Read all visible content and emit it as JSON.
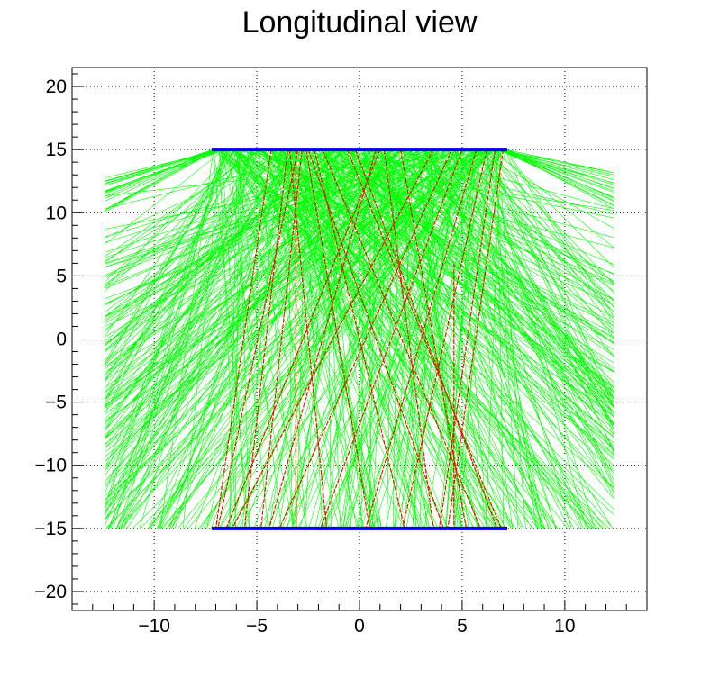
{
  "chart_data": {
    "type": "line",
    "title": "Longitudinal view",
    "xlabel": "",
    "ylabel": "",
    "xlim": [
      -14,
      14
    ],
    "ylim": [
      -21.5,
      21.5
    ],
    "x_ticks": [
      -10,
      -5,
      0,
      5,
      10
    ],
    "x_tick_labels": [
      "−10",
      "−5",
      "0",
      "5",
      "10"
    ],
    "y_ticks": [
      -20,
      -15,
      -10,
      -5,
      0,
      5,
      10,
      15,
      20
    ],
    "y_tick_labels": [
      "−20",
      "−15",
      "−10",
      "−5",
      "0",
      "5",
      "10",
      "15",
      "20"
    ],
    "grid": true,
    "legend": "none",
    "series": [
      {
        "role": "detector planes",
        "color": "#0000ff",
        "segments": [
          {
            "x": [
              -7.2,
              7.2
            ],
            "y": [
              15,
              15
            ]
          },
          {
            "x": [
              -7.2,
              7.2
            ],
            "y": [
              -15,
              -15
            ]
          }
        ]
      },
      {
        "role": "photon tracks",
        "color": "#00ff00",
        "source_x_range": [
          -7.2,
          7.2
        ],
        "source_y": 15,
        "end_y_bottom": -15,
        "side_x": [
          -12.4,
          12.4
        ],
        "side_y_range": [
          -15,
          13.3
        ]
      },
      {
        "role": "particle tracks",
        "color": "#ff0000",
        "segments": [
          {
            "x": [
              -3.0,
              -6.9
            ],
            "y": [
              15,
              -15
            ]
          },
          {
            "x": [
              -2.8,
              -4.8
            ],
            "y": [
              15,
              -15
            ]
          },
          {
            "x": [
              -3.5,
              -5.6
            ],
            "y": [
              15,
              -15
            ]
          },
          {
            "x": [
              -3.4,
              -1.6
            ],
            "y": [
              15,
              -15
            ]
          },
          {
            "x": [
              -2.6,
              0.5
            ],
            "y": [
              15,
              -15
            ]
          },
          {
            "x": [
              -2.2,
              2.2
            ],
            "y": [
              15,
              -15
            ]
          },
          {
            "x": [
              -2.5,
              4.1
            ],
            "y": [
              15,
              -15
            ]
          },
          {
            "x": [
              -1.8,
              5.9
            ],
            "y": [
              15,
              -15
            ]
          },
          {
            "x": [
              -0.2,
              6.7
            ],
            "y": [
              15,
              -15
            ]
          },
          {
            "x": [
              1.2,
              3.6
            ],
            "y": [
              15,
              -15
            ]
          },
          {
            "x": [
              2.0,
              5.2
            ],
            "y": [
              15,
              -15
            ]
          },
          {
            "x": [
              6.6,
              3.9
            ],
            "y": [
              15,
              -15
            ]
          },
          {
            "x": [
              6.2,
              2.1
            ],
            "y": [
              15,
              -15
            ]
          },
          {
            "x": [
              5.7,
              0.3
            ],
            "y": [
              15,
              -15
            ]
          },
          {
            "x": [
              5.0,
              -1.9
            ],
            "y": [
              15,
              -15
            ]
          },
          {
            "x": [
              4.5,
              -3.9
            ],
            "y": [
              15,
              -15
            ]
          },
          {
            "x": [
              3.6,
              -6.2
            ],
            "y": [
              15,
              -15
            ]
          },
          {
            "x": [
              7.0,
              4.3
            ],
            "y": [
              15,
              -15
            ]
          },
          {
            "x": [
              -4.3,
              -7.0
            ],
            "y": [
              15,
              -15
            ]
          },
          {
            "x": [
              -3.1,
              -3.1
            ],
            "y": [
              15,
              -15
            ]
          },
          {
            "x": [
              4.6,
              4.6
            ],
            "y": [
              6,
              -15
            ]
          },
          {
            "x": [
              -0.6,
              6.9
            ],
            "y": [
              15,
              -15
            ]
          },
          {
            "x": [
              0.8,
              -4.4
            ],
            "y": [
              15,
              -15
            ]
          },
          {
            "x": [
              -6.5,
              1.0
            ],
            "y": [
              -15,
              15
            ]
          }
        ]
      }
    ]
  }
}
